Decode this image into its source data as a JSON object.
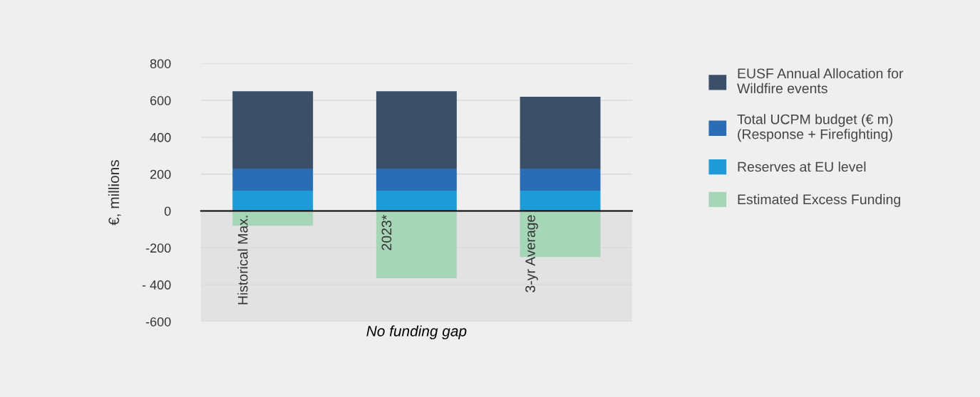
{
  "chart_data": {
    "type": "bar",
    "stacked": true,
    "ylabel": "€, millions",
    "xlabel": "No funding gap",
    "categories": [
      "Historical Max.",
      "2023*",
      "3-yr Average"
    ],
    "series": [
      {
        "name": "Reserves at EU level",
        "color": "#1f9cd8",
        "values": [
          110,
          110,
          110
        ]
      },
      {
        "name": "Total UCPM budget (€ m)\n(Response + Firefighting)",
        "color": "#2a6db5",
        "values": [
          120,
          120,
          120
        ]
      },
      {
        "name": "EUSF Annual Allocation for\nWildfire events",
        "color": "#3b5068",
        "values": [
          420,
          420,
          390
        ]
      },
      {
        "name": "Estimated Excess Funding",
        "color": "#a6d5b8",
        "values": [
          -80,
          -365,
          -250
        ]
      }
    ],
    "ylim": [
      -600,
      800
    ],
    "yticks": [
      -600,
      {
        "value": -400,
        "label": "- 400"
      },
      -200,
      0,
      200,
      400,
      600,
      800
    ],
    "bands": [
      {
        "axis": "y",
        "from": -600,
        "to": 0,
        "color": "#e2e2e2"
      }
    ],
    "grid": "y",
    "legend": "right"
  }
}
